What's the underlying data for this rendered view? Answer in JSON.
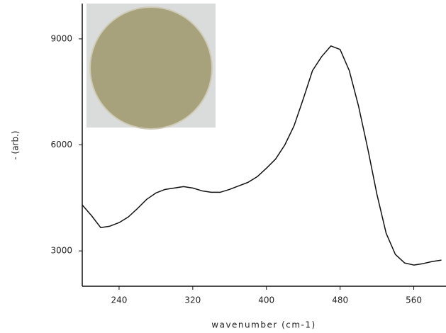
{
  "chart_data": {
    "type": "line",
    "xlabel": "wavenumber (cm-1)",
    "ylabel": "- (arb.)",
    "x": [
      200,
      210,
      220,
      230,
      240,
      250,
      260,
      270,
      280,
      290,
      300,
      310,
      320,
      330,
      340,
      350,
      360,
      370,
      380,
      390,
      400,
      410,
      420,
      430,
      440,
      450,
      460,
      470,
      480,
      490,
      500,
      510,
      520,
      530,
      540,
      550,
      560,
      570,
      580,
      590
    ],
    "series": [
      {
        "color": "#111111",
        "values": [
          4300,
          4000,
          3660,
          3700,
          3800,
          3960,
          4200,
          4460,
          4640,
          4740,
          4780,
          4820,
          4780,
          4700,
          4660,
          4660,
          4740,
          4840,
          4940,
          5100,
          5340,
          5600,
          6000,
          6540,
          7300,
          8100,
          8500,
          8800,
          8700,
          8100,
          7100,
          5900,
          4600,
          3500,
          2900,
          2660,
          2600,
          2640,
          2700,
          2740
        ]
      }
    ],
    "xlim": [
      200,
      595
    ],
    "ylim": [
      2000,
      10000
    ],
    "xticks": [
      240,
      320,
      400,
      480,
      560
    ],
    "yticks": [
      3000,
      6000,
      9000
    ]
  }
}
